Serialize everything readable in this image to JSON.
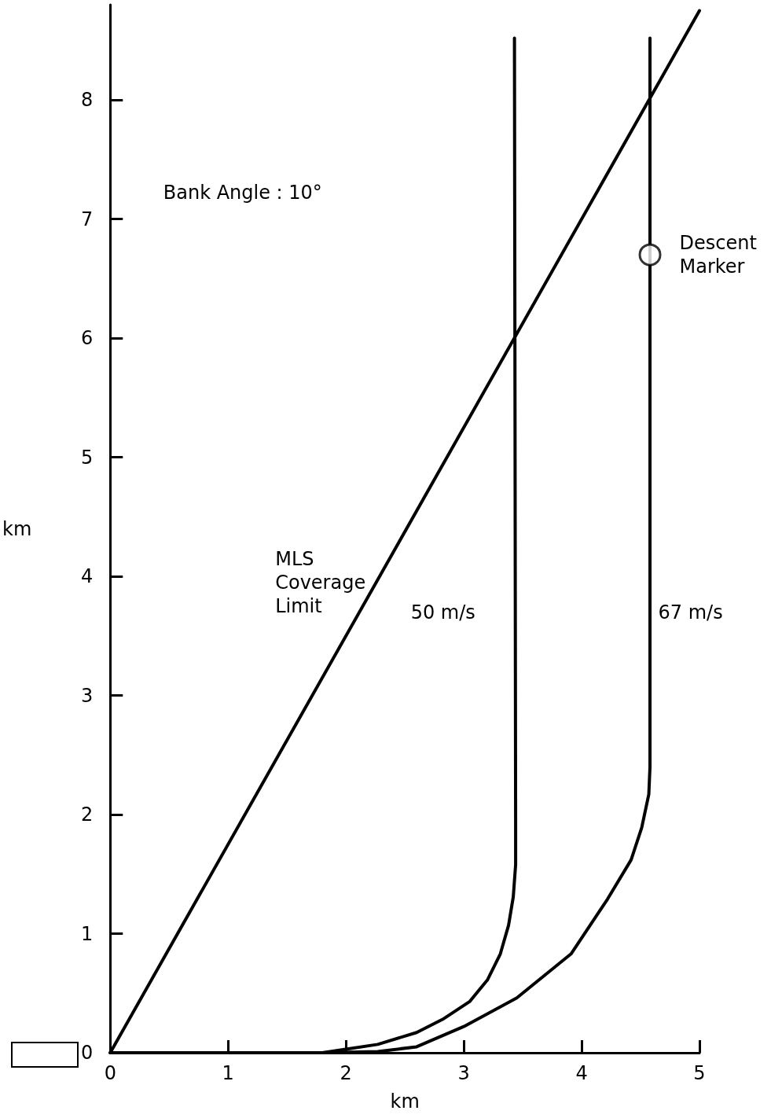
{
  "chart_data": {
    "type": "line",
    "xlabel": "km",
    "ylabel": "km",
    "xlim": [
      0,
      5
    ],
    "xticks": [
      0,
      1,
      2,
      3,
      4,
      5
    ],
    "ylim": [
      0,
      8.8
    ],
    "yticks": [
      0,
      1,
      2,
      3,
      4,
      5,
      6,
      7,
      8
    ],
    "grid": false,
    "legend": false,
    "marker": "none",
    "line_style": "solid",
    "annotations": [
      "Bank Angle : 10°"
    ],
    "series": [
      {
        "name": "MLS Coverage Limit",
        "color": "#000000",
        "x": [
          0,
          5
        ],
        "values": [
          0,
          8.75
        ]
      },
      {
        "name": "50 m/s",
        "color": "#000000",
        "x": [
          0,
          1.8,
          2.0,
          2.27,
          2.6,
          2.82,
          3.05,
          3.2,
          3.31,
          3.38,
          3.42,
          3.44,
          3.44,
          3.43
        ],
        "values": [
          0,
          0,
          0.03,
          0.07,
          0.17,
          0.28,
          0.43,
          0.61,
          0.83,
          1.07,
          1.31,
          1.58,
          1.91,
          8.52
        ]
      },
      {
        "name": "67 m/s",
        "color": "#000000",
        "x": [
          0,
          1.8,
          2.27,
          2.6,
          3.0,
          3.45,
          3.91,
          4.22,
          4.42,
          4.51,
          4.57,
          4.58,
          4.58
        ],
        "values": [
          0,
          0,
          0.01,
          0.05,
          0.22,
          0.46,
          0.83,
          1.29,
          1.62,
          1.89,
          2.17,
          2.4,
          8.52
        ]
      },
      {
        "name": "Descent Marker",
        "type": "scatter",
        "marker": "circle",
        "color": "#000000",
        "x": [
          4.58
        ],
        "values": [
          6.7
        ]
      }
    ]
  }
}
